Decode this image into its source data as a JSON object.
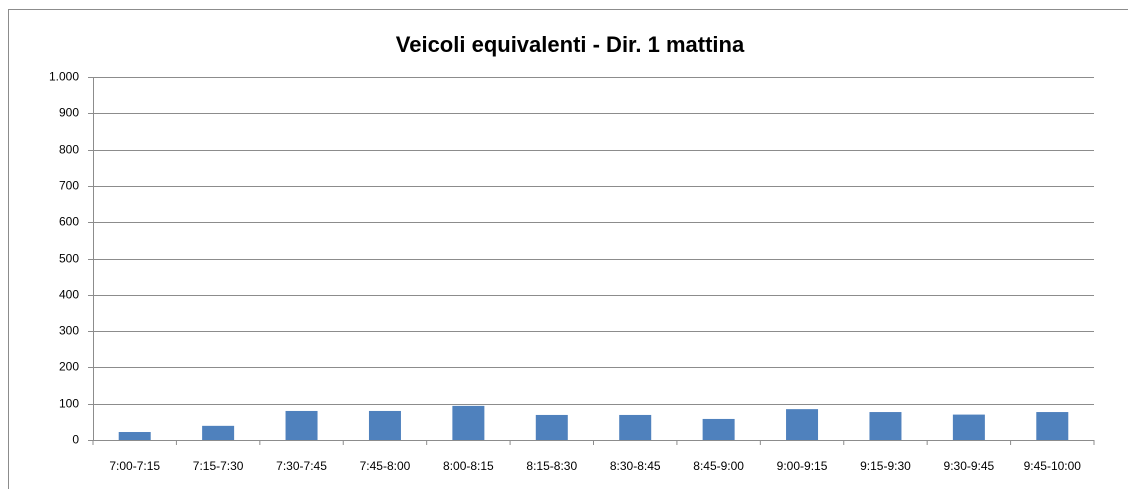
{
  "chart_data": {
    "type": "bar",
    "title": "Veicoli equivalenti - Dir. 1 mattina",
    "categories": [
      "7:00-7:15",
      "7:15-7:30",
      "7:30-7:45",
      "7:45-8:00",
      "8:00-8:15",
      "8:15-8:30",
      "8:30-8:45",
      "8:45-9:00",
      "9:00-9:15",
      "9:15-9:30",
      "9:30-9:45",
      "9:45-10:00"
    ],
    "values": [
      22,
      39,
      80,
      80,
      94,
      69,
      69,
      58,
      85,
      77,
      70,
      77
    ],
    "color": "#4f81bd",
    "ylim": [
      0,
      1000
    ],
    "yticks": [
      0,
      100,
      200,
      300,
      400,
      500,
      600,
      700,
      800,
      900,
      {
        "value": 1000,
        "label": "1.000"
      }
    ],
    "grid": true
  }
}
